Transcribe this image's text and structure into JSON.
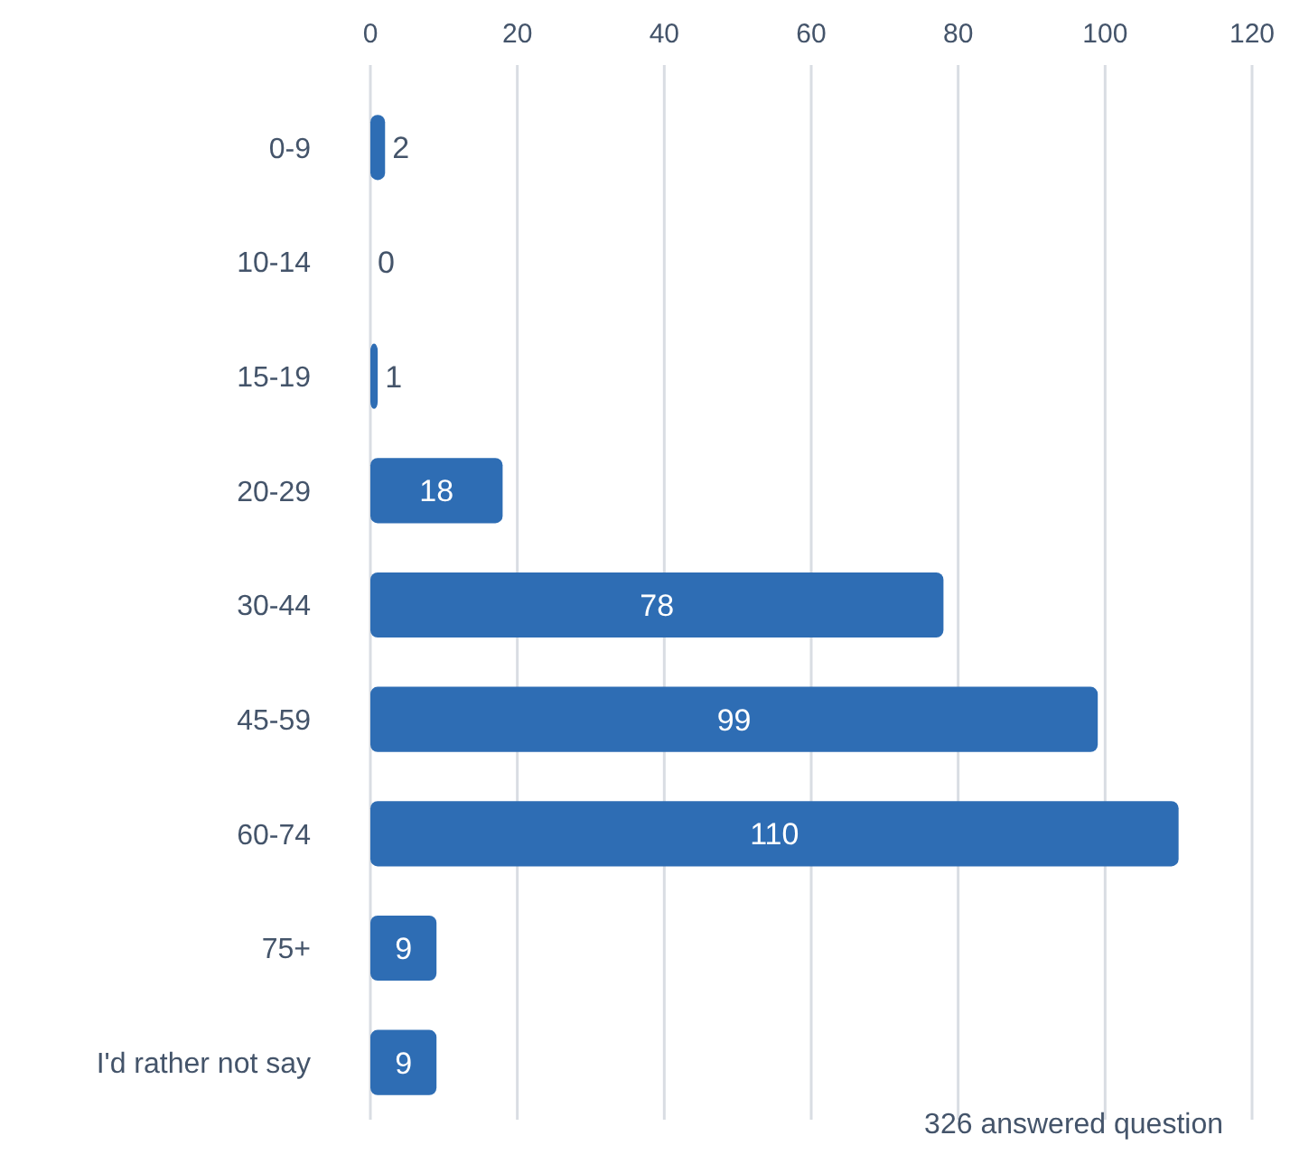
{
  "chart_data": {
    "type": "bar",
    "orientation": "horizontal",
    "categories": [
      "0-9",
      "10-14",
      "15-19",
      "20-29",
      "30-44",
      "45-59",
      "60-74",
      "75+",
      "I'd rather not say"
    ],
    "values": [
      2,
      0,
      1,
      18,
      78,
      99,
      110,
      9,
      9
    ],
    "color": "#2e6db4",
    "xlim": [
      0,
      120
    ],
    "xticks": [
      0,
      20,
      40,
      60,
      80,
      100,
      120
    ],
    "grid": "x",
    "data_labels": true,
    "annotations": [
      "326 answered question"
    ]
  }
}
